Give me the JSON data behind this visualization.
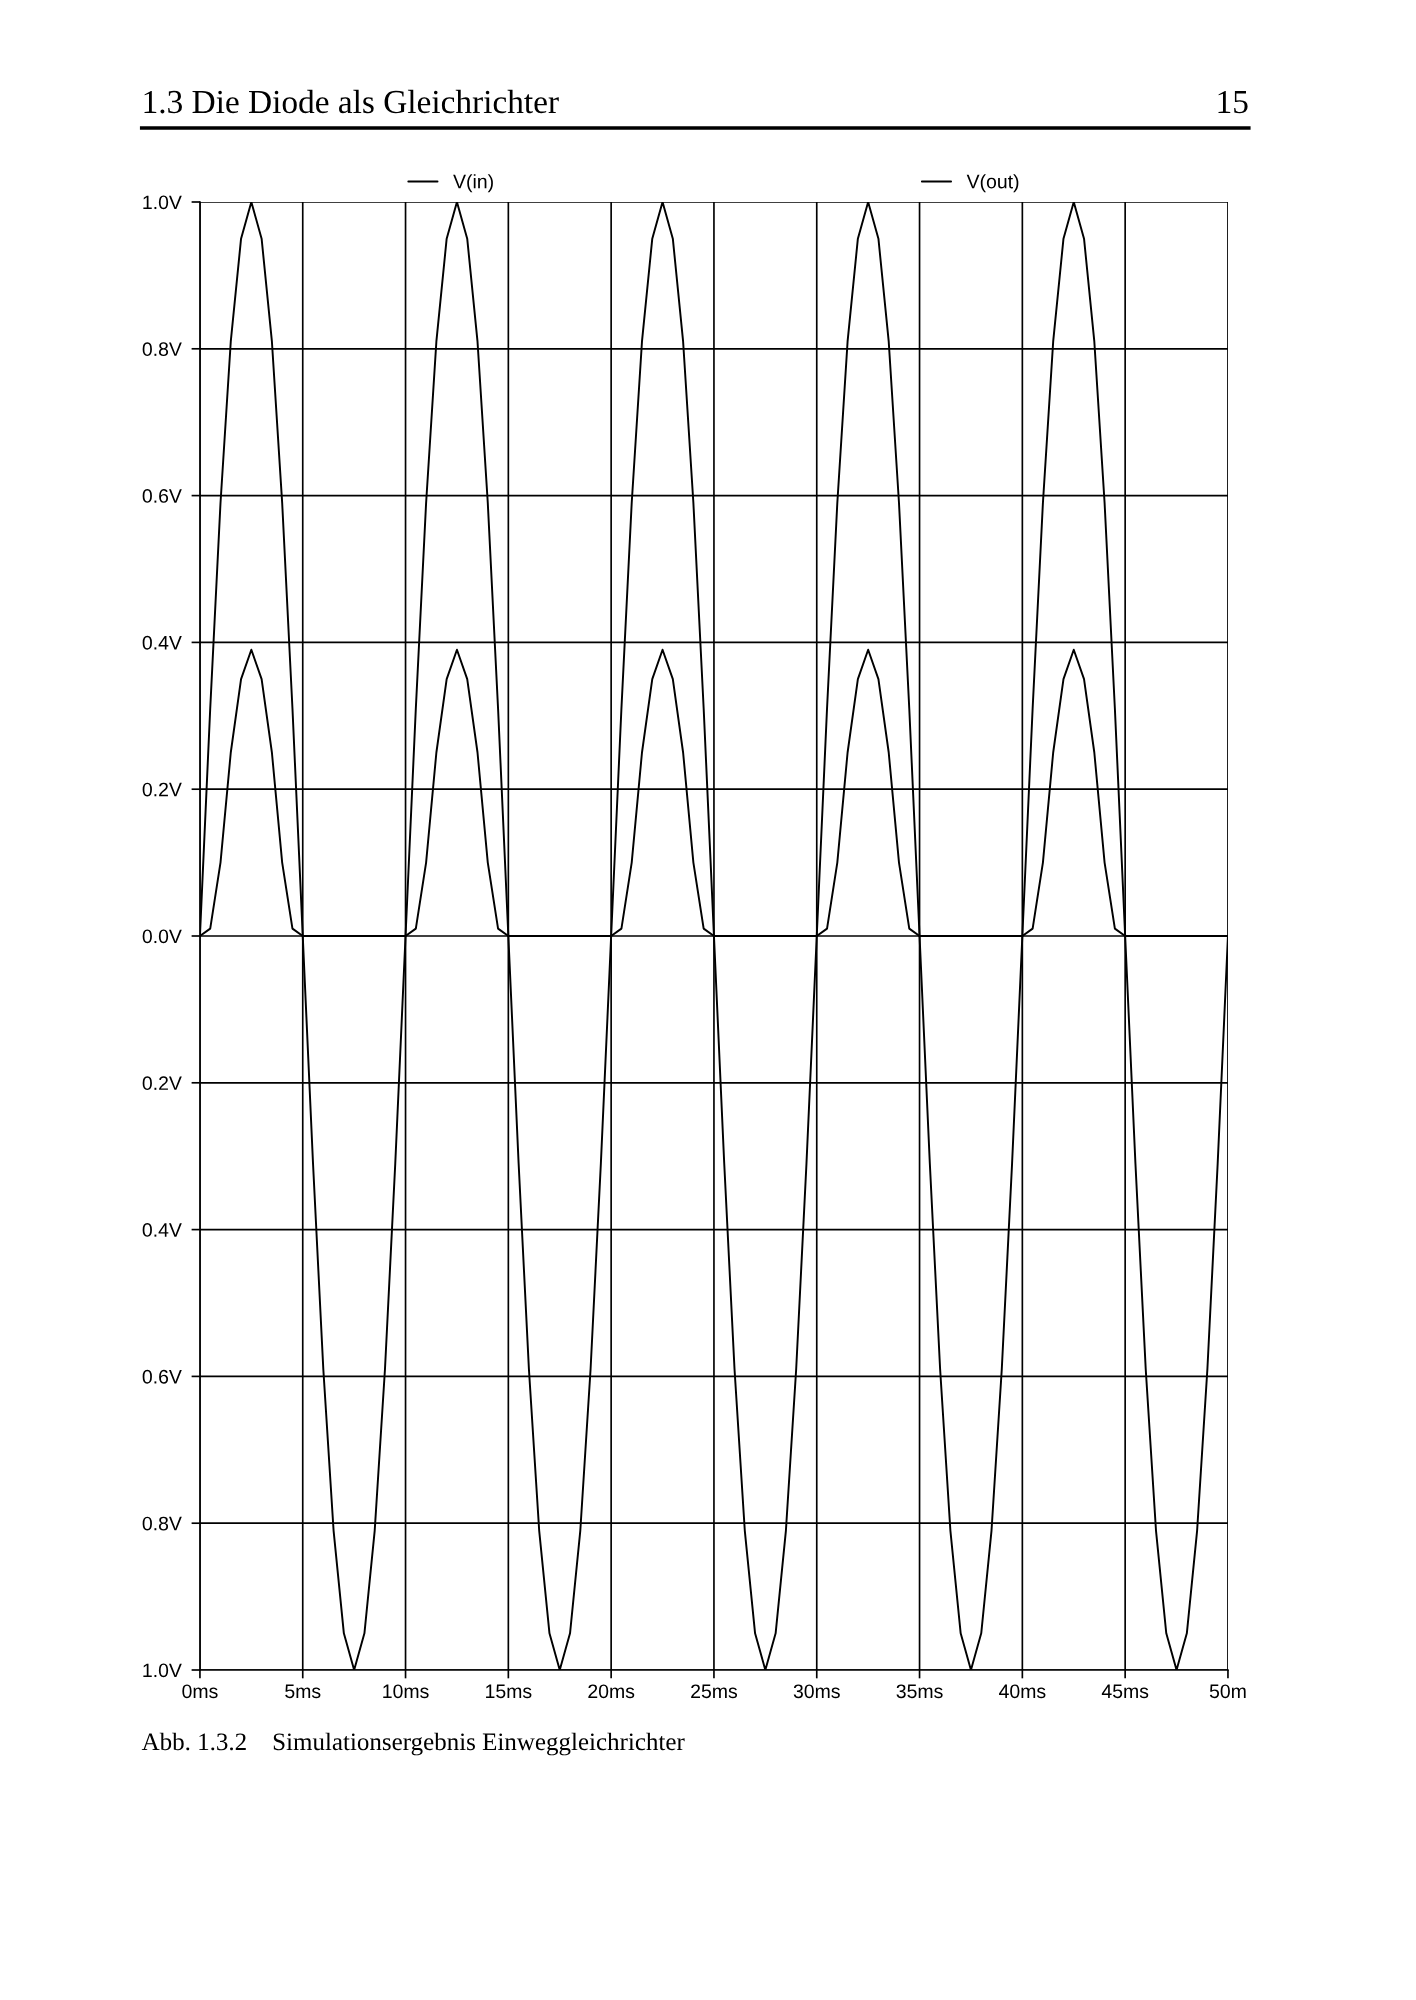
{
  "chart_data": {
    "type": "line",
    "annotations": [
      "1.3 Die Diode als Gleichrichter",
      "15",
      "Abb. 1.3.2    Simulationsergebnis Einweggleichrichter"
    ],
    "x": [
      0,
      0.5,
      1,
      1.5,
      2,
      2.5,
      3,
      3.5,
      4,
      4.5,
      5,
      5.5,
      6,
      6.5,
      7,
      7.5,
      8,
      8.5,
      9,
      9.5,
      10,
      10.5,
      11,
      11.5,
      12,
      12.5,
      13,
      13.5,
      14,
      14.5,
      15,
      15.5,
      16,
      16.5,
      17,
      17.5,
      18,
      18.5,
      19,
      19.5,
      20,
      20.5,
      21,
      21.5,
      22,
      22.5,
      23,
      23.5,
      24,
      24.5,
      25,
      25.5,
      26,
      26.5,
      27,
      27.5,
      28,
      28.5,
      29,
      29.5,
      30,
      30.5,
      31,
      31.5,
      32,
      32.5,
      33,
      33.5,
      34,
      34.5,
      35,
      35.5,
      36,
      36.5,
      37,
      37.5,
      38,
      38.5,
      39,
      39.5,
      40,
      40.5,
      41,
      41.5,
      42,
      42.5,
      43,
      43.5,
      44,
      44.5,
      45,
      45.5,
      46,
      46.5,
      47,
      47.5,
      48,
      48.5,
      49,
      49.5,
      50
    ],
    "series": [
      {
        "name": "V(in)",
        "color": "#000000",
        "values": [
          0,
          0.31,
          0.59,
          0.81,
          0.95,
          1.0,
          0.95,
          0.81,
          0.59,
          0.31,
          0,
          -0.31,
          -0.59,
          -0.81,
          -0.95,
          -1.0,
          -0.95,
          -0.81,
          -0.59,
          -0.31,
          0,
          0.31,
          0.59,
          0.81,
          0.95,
          1.0,
          0.95,
          0.81,
          0.59,
          0.31,
          0,
          -0.31,
          -0.59,
          -0.81,
          -0.95,
          -1.0,
          -0.95,
          -0.81,
          -0.59,
          -0.31,
          0,
          0.31,
          0.59,
          0.81,
          0.95,
          1.0,
          0.95,
          0.81,
          0.59,
          0.31,
          0,
          -0.31,
          -0.59,
          -0.81,
          -0.95,
          -1.0,
          -0.95,
          -0.81,
          -0.59,
          -0.31,
          0,
          0.31,
          0.59,
          0.81,
          0.95,
          1.0,
          0.95,
          0.81,
          0.59,
          0.31,
          0,
          -0.31,
          -0.59,
          -0.81,
          -0.95,
          -1.0,
          -0.95,
          -0.81,
          -0.59,
          -0.31,
          0,
          0.31,
          0.59,
          0.81,
          0.95,
          1.0,
          0.95,
          0.81,
          0.59,
          0.31,
          0,
          -0.31,
          -0.59,
          -0.81,
          -0.95,
          -1.0,
          -0.95,
          -0.81,
          -0.59,
          -0.31,
          0
        ]
      },
      {
        "name": "V(out)",
        "color": "#000000",
        "values": [
          0,
          0.01,
          0.1,
          0.25,
          0.35,
          0.39,
          0.35,
          0.25,
          0.1,
          0.01,
          0,
          0,
          0,
          0,
          0,
          0,
          0,
          0,
          0,
          0,
          0,
          0.01,
          0.1,
          0.25,
          0.35,
          0.39,
          0.35,
          0.25,
          0.1,
          0.01,
          0,
          0,
          0,
          0,
          0,
          0,
          0,
          0,
          0,
          0,
          0,
          0.01,
          0.1,
          0.25,
          0.35,
          0.39,
          0.35,
          0.25,
          0.1,
          0.01,
          0,
          0,
          0,
          0,
          0,
          0,
          0,
          0,
          0,
          0,
          0,
          0.01,
          0.1,
          0.25,
          0.35,
          0.39,
          0.35,
          0.25,
          0.1,
          0.01,
          0,
          0,
          0,
          0,
          0,
          0,
          0,
          0,
          0,
          0,
          0,
          0.01,
          0.1,
          0.25,
          0.35,
          0.39,
          0.35,
          0.25,
          0.1,
          0.01,
          0,
          0,
          0,
          0,
          0,
          0,
          0,
          0,
          0,
          0,
          0
        ]
      }
    ],
    "xlim": [
      0,
      50
    ],
    "xticks": [
      {
        "value": 0,
        "label": "0ms"
      },
      {
        "value": 5,
        "label": "5ms"
      },
      {
        "value": 10,
        "label": "10ms"
      },
      {
        "value": 15,
        "label": "15ms"
      },
      {
        "value": 20,
        "label": "20ms"
      },
      {
        "value": 25,
        "label": "25ms"
      },
      {
        "value": 30,
        "label": "30ms"
      },
      {
        "value": 35,
        "label": "35ms"
      },
      {
        "value": 40,
        "label": "40ms"
      },
      {
        "value": 45,
        "label": "45ms"
      },
      {
        "value": 50,
        "label": "50m"
      }
    ],
    "ylim": [
      -1.0,
      1.0
    ],
    "yticks": [
      {
        "value": -1.0,
        "label": "1.0V"
      },
      {
        "value": -0.8,
        "label": "0.8V"
      },
      {
        "value": -0.6,
        "label": "0.6V"
      },
      {
        "value": -0.4,
        "label": "0.4V"
      },
      {
        "value": -0.2,
        "label": "0.2V"
      },
      {
        "value": 0.0,
        "label": "0.0V"
      },
      {
        "value": 0.2,
        "label": "0.2V"
      },
      {
        "value": 0.4,
        "label": "0.4V"
      },
      {
        "value": 0.6,
        "label": "0.6V"
      },
      {
        "value": 0.8,
        "label": "0.8V"
      },
      {
        "value": 1.0,
        "label": "1.0V"
      }
    ],
    "grid": true,
    "legend": "top"
  }
}
